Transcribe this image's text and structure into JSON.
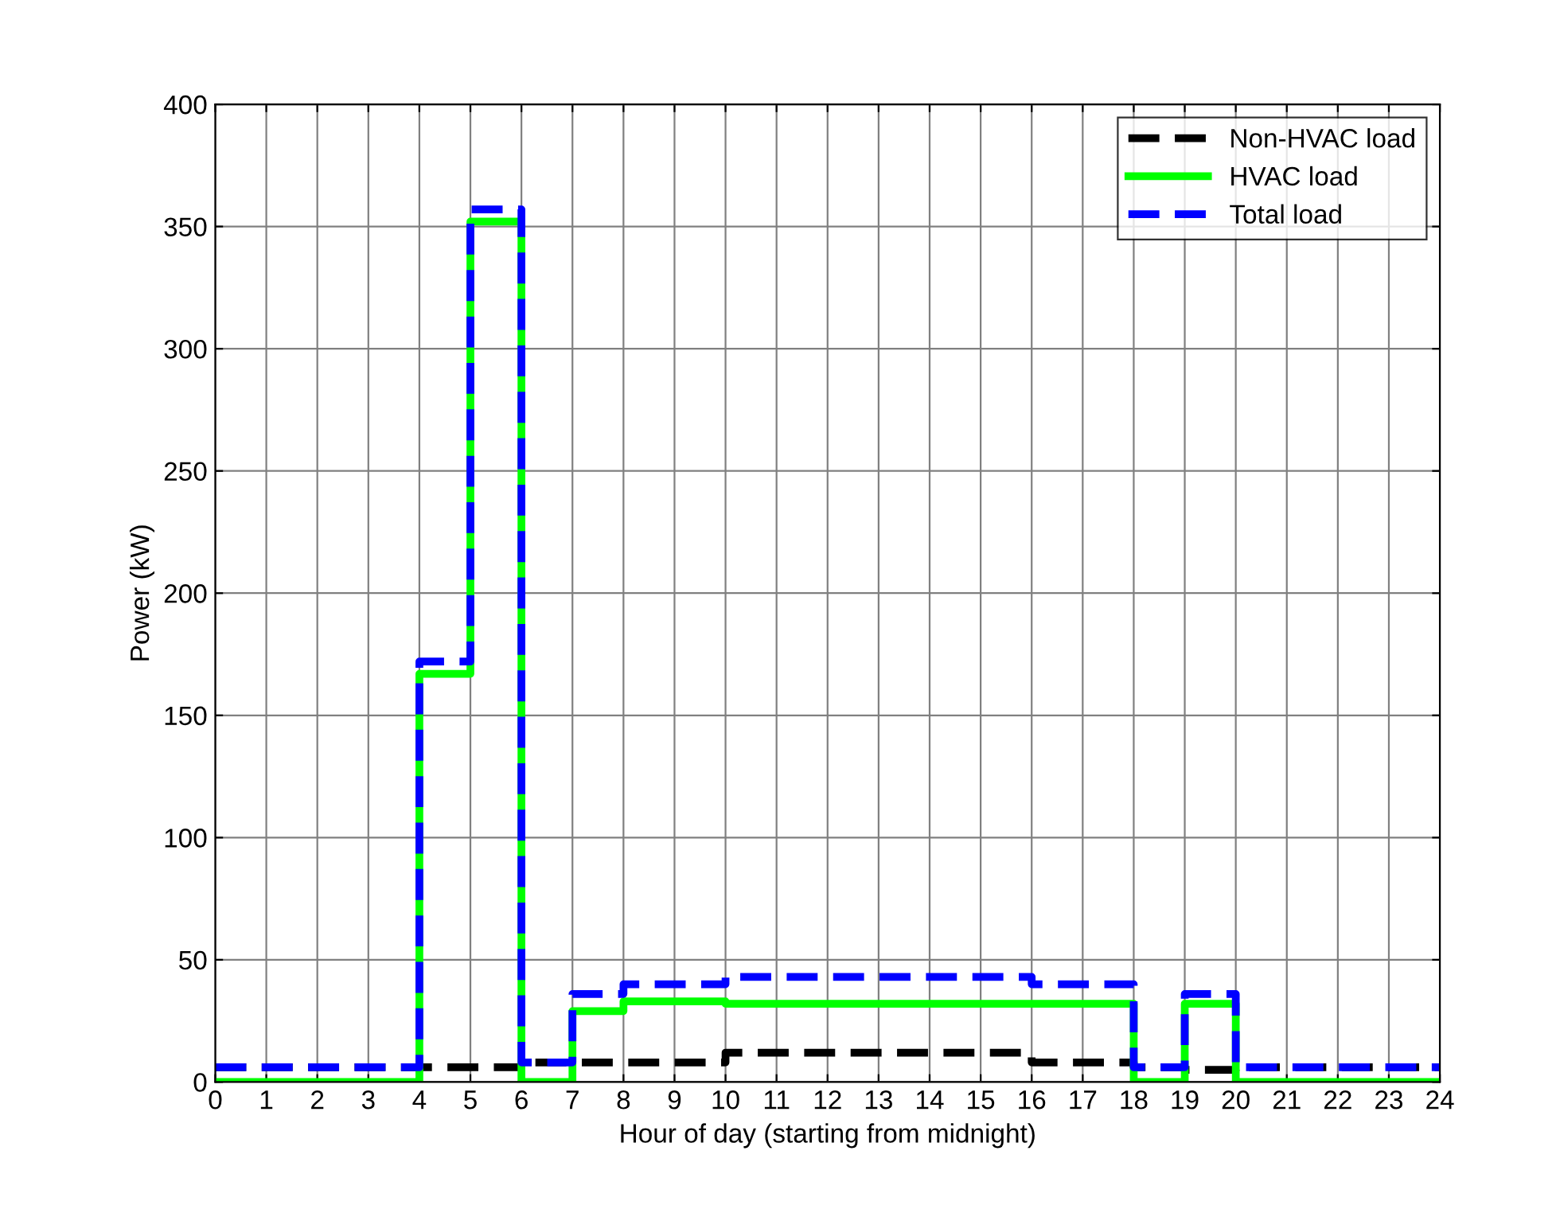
{
  "chart_data": {
    "type": "step",
    "xlabel": "Hour of day (starting from midnight)",
    "ylabel": "Power (kW)",
    "x": [
      0,
      1,
      2,
      3,
      4,
      5,
      6,
      7,
      8,
      9,
      10,
      11,
      12,
      13,
      14,
      15,
      16,
      17,
      18,
      19,
      20,
      21,
      22,
      23,
      24
    ],
    "series": [
      {
        "name": "Non-HVAC load",
        "color": "#000000",
        "line_style": "dashed",
        "values": [
          6,
          6,
          6,
          6,
          6,
          6,
          8,
          8,
          8,
          8,
          12,
          12,
          12,
          12,
          12,
          12,
          8,
          8,
          6,
          5,
          6,
          6,
          6,
          6,
          6
        ]
      },
      {
        "name": "HVAC load",
        "color": "#00ff00",
        "line_style": "solid",
        "values": [
          0,
          0,
          0,
          0,
          167,
          352,
          0,
          29,
          33,
          33,
          32,
          32,
          32,
          32,
          32,
          32,
          32,
          32,
          0,
          32,
          0,
          0,
          0,
          0,
          0
        ]
      },
      {
        "name": "Total load",
        "color": "#0000ff",
        "line_style": "dashed",
        "values": [
          6,
          6,
          6,
          6,
          172,
          357,
          8,
          36,
          40,
          40,
          43,
          43,
          43,
          43,
          43,
          43,
          40,
          40,
          6,
          36,
          6,
          6,
          6,
          6,
          6
        ]
      }
    ],
    "xlim": [
      0,
      24
    ],
    "xticks": [
      0,
      1,
      2,
      3,
      4,
      5,
      6,
      7,
      8,
      9,
      10,
      11,
      12,
      13,
      14,
      15,
      16,
      17,
      18,
      19,
      20,
      21,
      22,
      23,
      24
    ],
    "ylim": [
      0,
      400
    ],
    "yticks": [
      0,
      50,
      100,
      150,
      200,
      250,
      300,
      350,
      400
    ],
    "grid": true,
    "legend": "top right"
  }
}
